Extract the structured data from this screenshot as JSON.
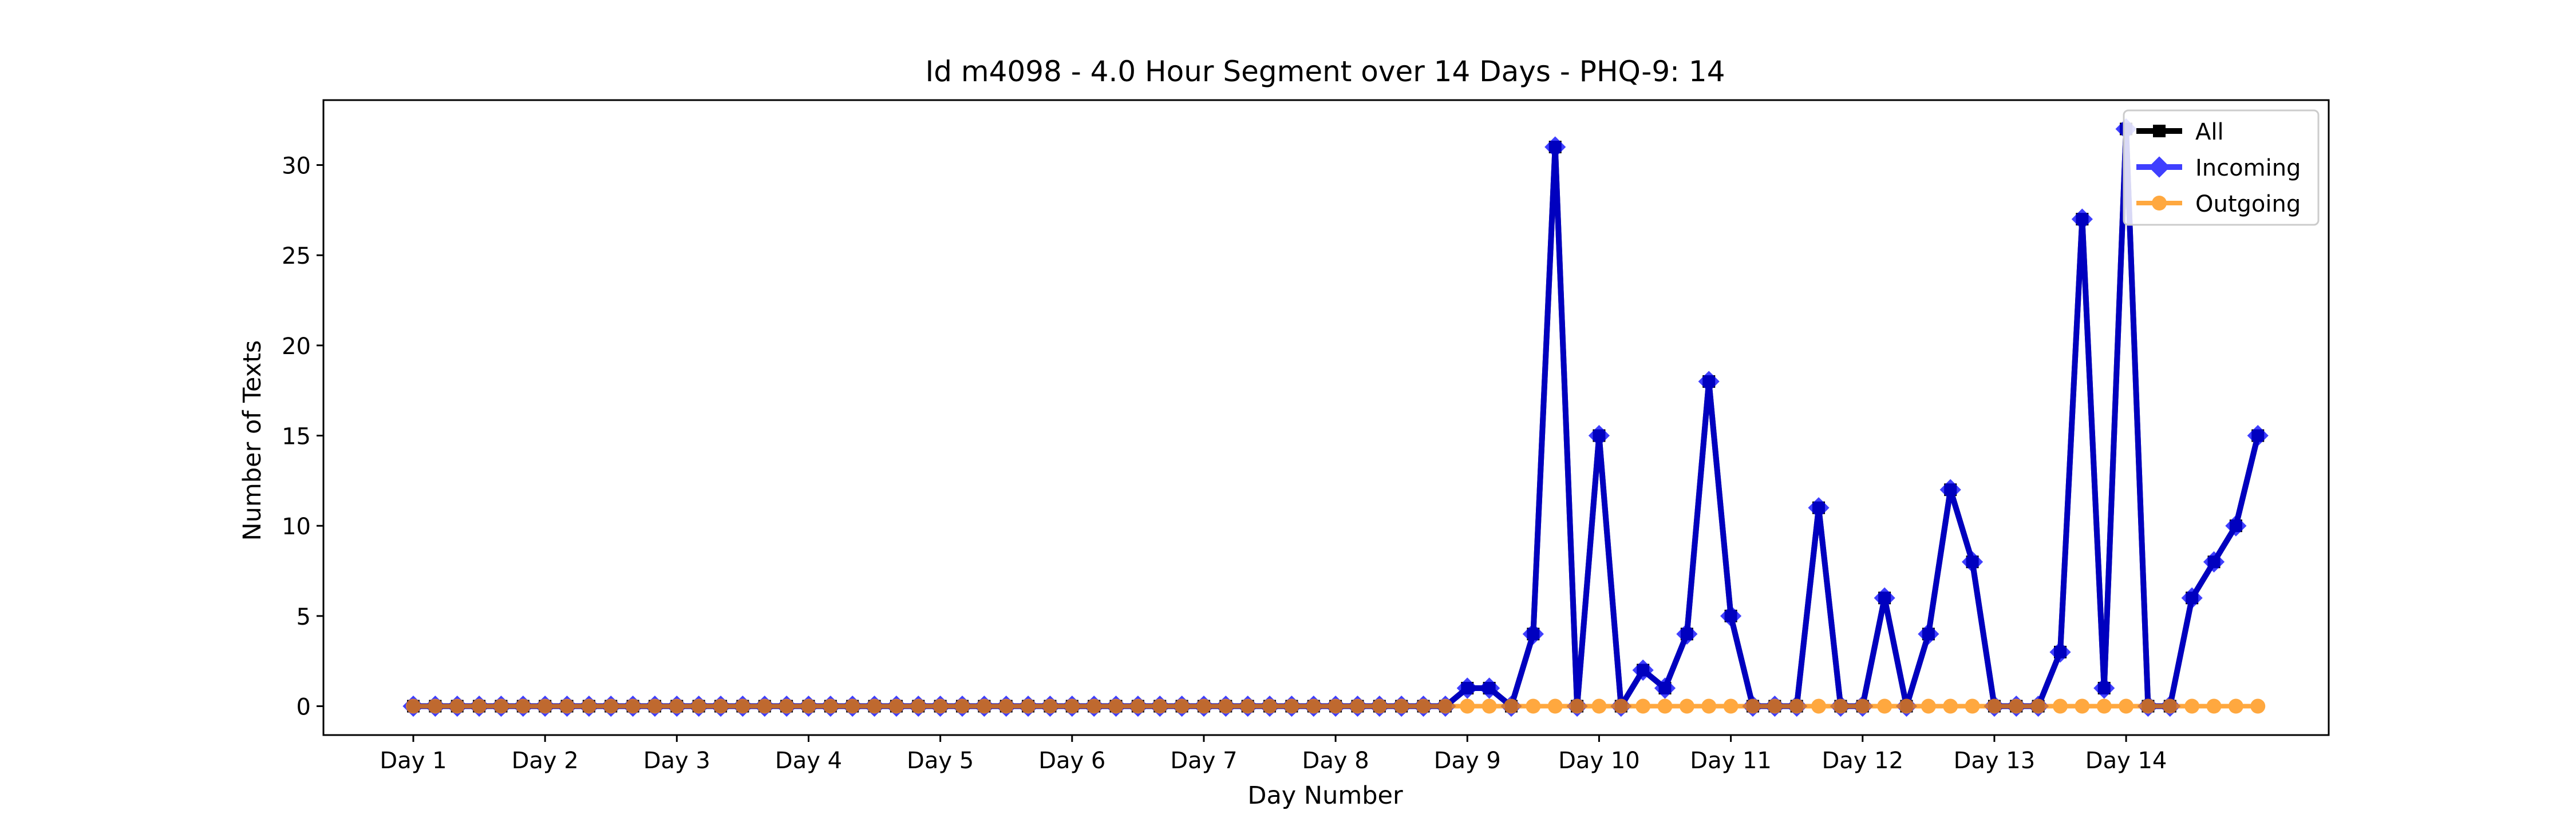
{
  "chart_data": {
    "type": "line",
    "title": "Id m4098 - 4.0 Hour Segment over 14 Days - PHQ-9: 14",
    "xlabel": "Day Number",
    "ylabel": "Number of Texts",
    "x_ticks": [
      "Day 1",
      "Day 2",
      "Day 3",
      "Day 4",
      "Day 5",
      "Day 6",
      "Day 7",
      "Day 8",
      "Day 9",
      "Day 10",
      "Day 11",
      "Day 12",
      "Day 13",
      "Day 14"
    ],
    "y_ticks": [
      0,
      5,
      10,
      15,
      20,
      25,
      30
    ],
    "ylim": [
      -1.6,
      33.6
    ],
    "grid": false,
    "legend_position": "top-right",
    "series": [
      {
        "name": "All",
        "color": "#000000",
        "marker": "square",
        "values": [
          0,
          0,
          0,
          0,
          0,
          0,
          0,
          0,
          0,
          0,
          0,
          0,
          0,
          0,
          0,
          0,
          0,
          0,
          0,
          0,
          0,
          0,
          0,
          0,
          0,
          0,
          0,
          0,
          0,
          0,
          0,
          0,
          0,
          0,
          0,
          0,
          0,
          0,
          0,
          0,
          0,
          0,
          0,
          0,
          0,
          0,
          0,
          0,
          1,
          1,
          0,
          4,
          31,
          0,
          15,
          0,
          2,
          1,
          4,
          18,
          5,
          0,
          0,
          0,
          11,
          0,
          0,
          6,
          0,
          4,
          12,
          8,
          0,
          0,
          0,
          3,
          27,
          1,
          32,
          0,
          0,
          6,
          8,
          10,
          15
        ]
      },
      {
        "name": "Incoming",
        "color": "#0000ff",
        "marker": "diamond",
        "values": [
          0,
          0,
          0,
          0,
          0,
          0,
          0,
          0,
          0,
          0,
          0,
          0,
          0,
          0,
          0,
          0,
          0,
          0,
          0,
          0,
          0,
          0,
          0,
          0,
          0,
          0,
          0,
          0,
          0,
          0,
          0,
          0,
          0,
          0,
          0,
          0,
          0,
          0,
          0,
          0,
          0,
          0,
          0,
          0,
          0,
          0,
          0,
          0,
          1,
          1,
          0,
          4,
          31,
          0,
          15,
          0,
          2,
          1,
          4,
          18,
          5,
          0,
          0,
          0,
          11,
          0,
          0,
          6,
          0,
          4,
          12,
          8,
          0,
          0,
          0,
          3,
          27,
          1,
          32,
          0,
          0,
          6,
          8,
          10,
          15
        ]
      },
      {
        "name": "Outgoing",
        "color": "#ff8c00",
        "marker": "circle",
        "values": [
          0,
          0,
          0,
          0,
          0,
          0,
          0,
          0,
          0,
          0,
          0,
          0,
          0,
          0,
          0,
          0,
          0,
          0,
          0,
          0,
          0,
          0,
          0,
          0,
          0,
          0,
          0,
          0,
          0,
          0,
          0,
          0,
          0,
          0,
          0,
          0,
          0,
          0,
          0,
          0,
          0,
          0,
          0,
          0,
          0,
          0,
          0,
          0,
          0,
          0,
          0,
          0,
          0,
          0,
          0,
          0,
          0,
          0,
          0,
          0,
          0,
          0,
          0,
          0,
          0,
          0,
          0,
          0,
          0,
          0,
          0,
          0,
          0,
          0,
          0,
          0,
          0,
          0,
          0,
          0,
          0,
          0,
          0,
          0,
          0
        ]
      }
    ]
  }
}
